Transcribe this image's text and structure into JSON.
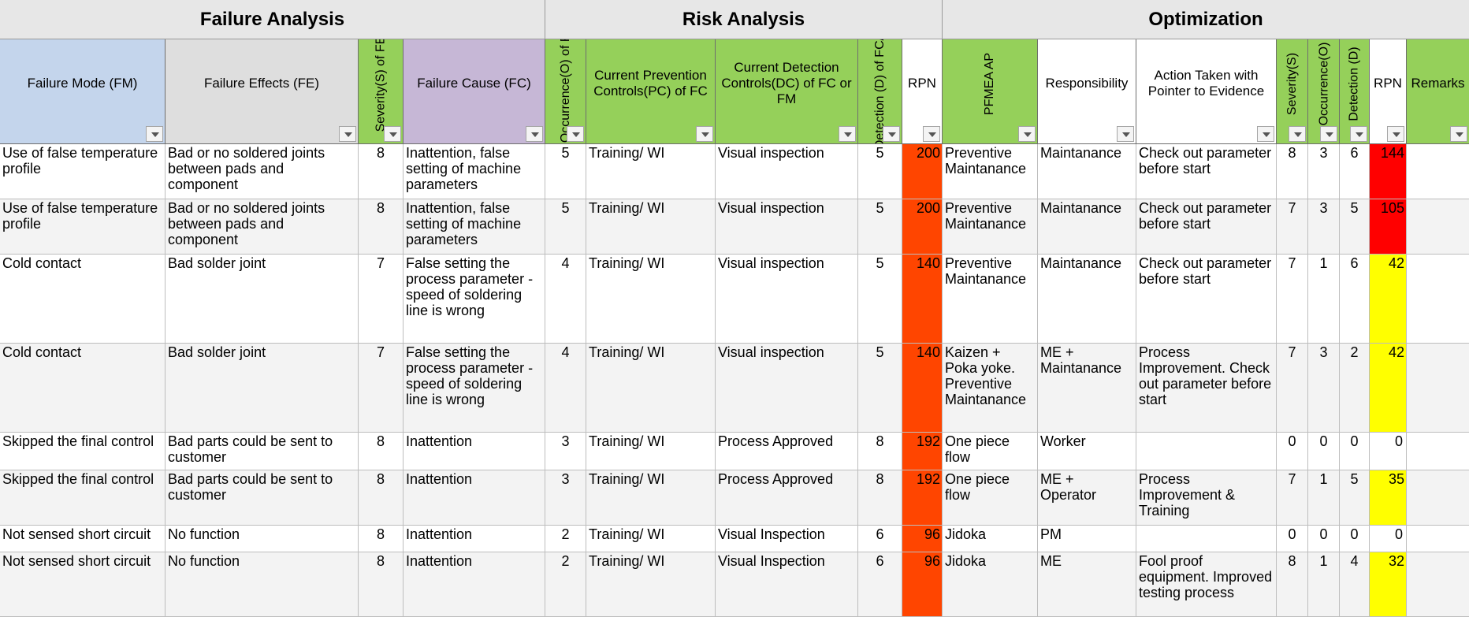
{
  "sections": [
    {
      "label": "Failure Analysis"
    },
    {
      "label": "Risk Analysis"
    },
    {
      "label": "Optimization"
    }
  ],
  "columns": [
    {
      "label": "Failure Mode (FM)"
    },
    {
      "label": "Failure Effects (FE)"
    },
    {
      "label": "Severity(S) of FE"
    },
    {
      "label": "Failure Cause (FC)"
    },
    {
      "label": "Occurrence(O) of FC"
    },
    {
      "label": "Current Prevention Controls(PC) of FC"
    },
    {
      "label": "Current Detection Controls(DC) of FC or FM"
    },
    {
      "label": "Detection (D) of FC/FM"
    },
    {
      "label": "RPN"
    },
    {
      "label": "PFMEA AP"
    },
    {
      "label": "Responsibility"
    },
    {
      "label": "Action Taken with Pointer to Evidence"
    },
    {
      "label": "Severity(S)"
    },
    {
      "label": "Occurrence(O)"
    },
    {
      "label": "Detection (D)"
    },
    {
      "label": "RPN"
    },
    {
      "label": "Remarks"
    }
  ],
  "rows": [
    {
      "fm": "Use of false temperature profile",
      "fe": "Bad or no soldered joints between pads and component",
      "s": "8",
      "fc": "Inattention, false setting of machine parameters",
      "o": "5",
      "pc": "Training/ WI",
      "dc": "Visual inspection",
      "d": "5",
      "rpn": "200",
      "ap": "Preventive Maintanance",
      "resp": "Maintanance",
      "action": "Check out parameter before start",
      "s2": "8",
      "o2": "3",
      "d2": "6",
      "rpn2": "144",
      "rpn2_level": "red",
      "remarks": ""
    },
    {
      "fm": "Use of false temperature profile",
      "fe": "Bad or no soldered joints between pads and component",
      "s": "8",
      "fc": "Inattention, false setting of machine parameters",
      "o": "5",
      "pc": "Training/ WI",
      "dc": "Visual inspection",
      "d": "5",
      "rpn": "200",
      "ap": "Preventive Maintanance",
      "resp": "Maintanance",
      "action": "Check out parameter before start",
      "s2": "7",
      "o2": "3",
      "d2": "5",
      "rpn2": "105",
      "rpn2_level": "red",
      "remarks": ""
    },
    {
      "fm": "Cold contact",
      "fe": "Bad solder joint",
      "s": "7",
      "fc": "False setting the process parameter - speed of soldering line is wrong",
      "o": "4",
      "pc": "Training/ WI",
      "dc": "Visual inspection",
      "d": "5",
      "rpn": "140",
      "ap": "Preventive Maintanance",
      "resp": "Maintanance",
      "action": "Check out parameter before start",
      "s2": "7",
      "o2": "1",
      "d2": "6",
      "rpn2": "42",
      "rpn2_level": "yellow",
      "remarks": ""
    },
    {
      "fm": "Cold contact",
      "fe": "Bad solder joint",
      "s": "7",
      "fc": "False setting the process parameter - speed of soldering line is wrong",
      "o": "4",
      "pc": "Training/ WI",
      "dc": "Visual inspection",
      "d": "5",
      "rpn": "140",
      "ap": "Kaizen + Poka yoke. Preventive Maintanance",
      "resp": "ME + Maintanance",
      "action": "Process Improvement. Check out parameter before start",
      "s2": "7",
      "o2": "3",
      "d2": "2",
      "rpn2": "42",
      "rpn2_level": "yellow",
      "remarks": ""
    },
    {
      "fm": "Skipped the final control",
      "fe": "Bad parts could be sent to customer",
      "s": "8",
      "fc": "Inattention",
      "o": "3",
      "pc": "Training/ WI",
      "dc": "Process Approved",
      "d": "8",
      "rpn": "192",
      "ap": "One piece flow",
      "resp": "Worker",
      "action": "",
      "s2": "0",
      "o2": "0",
      "d2": "0",
      "rpn2": "0",
      "rpn2_level": "none",
      "remarks": ""
    },
    {
      "fm": "Skipped the final control",
      "fe": "Bad parts could be sent to customer",
      "s": "8",
      "fc": "Inattention",
      "o": "3",
      "pc": "Training/ WI",
      "dc": "Process Approved",
      "d": "8",
      "rpn": "192",
      "ap": "One piece flow",
      "resp": "ME + Operator",
      "action": "Process Improvement & Training",
      "s2": "7",
      "o2": "1",
      "d2": "5",
      "rpn2": "35",
      "rpn2_level": "yellow",
      "remarks": ""
    },
    {
      "fm": "Not sensed short circuit",
      "fe": "No function",
      "s": "8",
      "fc": "Inattention",
      "o": "2",
      "pc": "Training/ WI",
      "dc": "Visual Inspection",
      "d": "6",
      "rpn": "96",
      "ap": "Jidoka",
      "resp": "PM",
      "action": "",
      "s2": "0",
      "o2": "0",
      "d2": "0",
      "rpn2": "0",
      "rpn2_level": "none",
      "remarks": ""
    },
    {
      "fm": "Not sensed short circuit",
      "fe": "No function",
      "s": "8",
      "fc": "Inattention",
      "o": "2",
      "pc": "Training/ WI",
      "dc": "Visual Inspection",
      "d": "6",
      "rpn": "96",
      "ap": "Jidoka",
      "resp": "ME",
      "action": "Fool proof equipment. Improved testing process",
      "s2": "8",
      "o2": "1",
      "d2": "4",
      "rpn2": "32",
      "rpn2_level": "yellow",
      "remarks": ""
    }
  ]
}
